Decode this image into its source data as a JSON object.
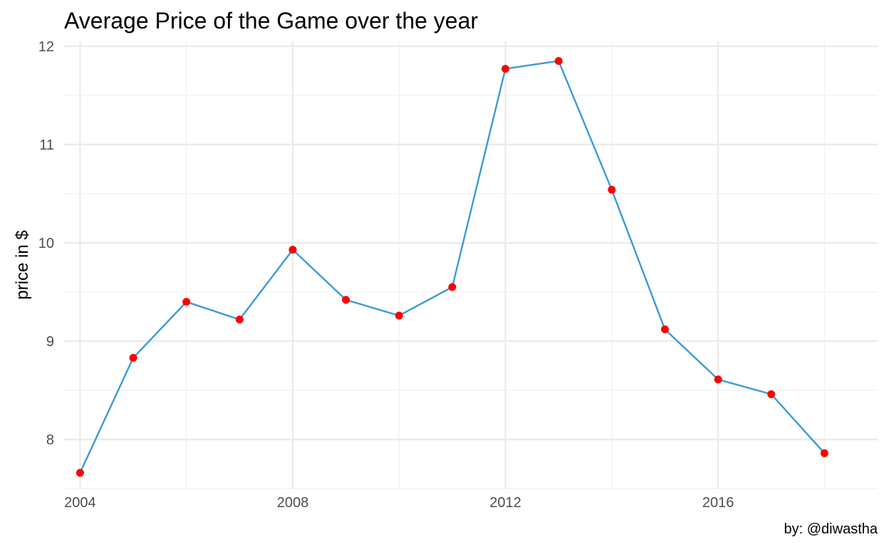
{
  "chart_data": {
    "type": "line",
    "title": "Average Price of the Game over the year",
    "xlabel": "",
    "ylabel": "price in $",
    "caption": "by: @diwastha",
    "x": [
      2004,
      2005,
      2006,
      2007,
      2008,
      2009,
      2010,
      2011,
      2012,
      2013,
      2014,
      2015,
      2016,
      2017,
      2018
    ],
    "series": [
      {
        "values": [
          7.66,
          8.83,
          9.4,
          9.22,
          9.93,
          9.42,
          9.26,
          9.55,
          11.77,
          11.85,
          10.54,
          9.12,
          8.61,
          8.46,
          7.86
        ]
      }
    ],
    "xlim": [
      2003.7,
      2019.0
    ],
    "ylim": [
      7.5,
      12.05
    ],
    "x_ticks": [
      2004,
      2008,
      2012,
      2016
    ],
    "y_ticks": [
      8,
      9,
      10,
      11,
      12
    ],
    "grid": true,
    "legend": "none",
    "line_color": "#3a9ad9",
    "point_color": "#ff0000"
  }
}
